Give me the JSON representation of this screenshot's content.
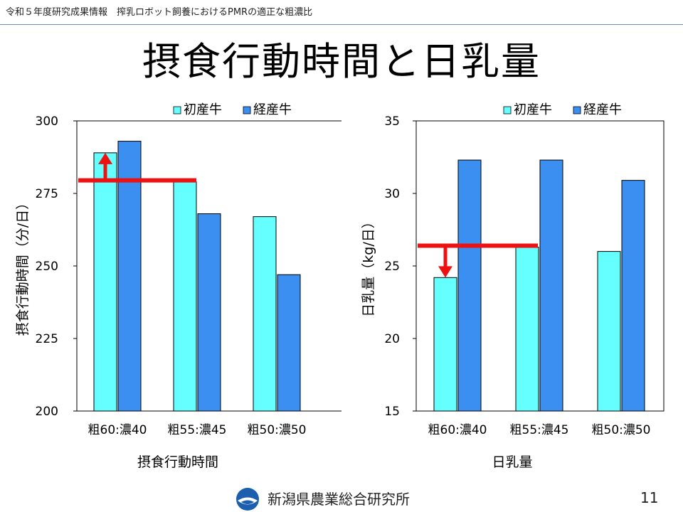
{
  "header": {
    "text": "令和５年度研究成果情報　搾乳ロボット飼養におけるPMRの適正な粗濃比"
  },
  "title": "摂食行動時間と日乳量",
  "footer": {
    "organization": "新潟県農業総合研究所",
    "page_number": "11"
  },
  "colors": {
    "primiparous": "#66ffff",
    "multiparous": "#3a8ff0",
    "reference": "#ee1111"
  },
  "chart_data": [
    {
      "type": "bar",
      "title": "摂食行動時間",
      "ylabel": "摂食行動時間（分/日）",
      "ylim": [
        200,
        300
      ],
      "yticks": [
        200,
        225,
        250,
        275,
        300
      ],
      "categories": [
        "粗60:濃40",
        "粗55:濃45",
        "粗50:濃50"
      ],
      "series": [
        {
          "name": "初産牛",
          "values": [
            289,
            279,
            267
          ]
        },
        {
          "name": "経産牛",
          "values": [
            293,
            268,
            247
          ]
        }
      ],
      "reference_line": 279.5,
      "legend_position": "top-right"
    },
    {
      "type": "bar",
      "title": "日乳量",
      "ylabel": "日乳量（kg/日）",
      "ylim": [
        15,
        35
      ],
      "yticks": [
        15,
        20,
        25,
        30,
        35
      ],
      "categories": [
        "粗60:濃40",
        "粗55:濃45",
        "粗50:濃50"
      ],
      "series": [
        {
          "name": "初産牛",
          "values": [
            24.2,
            26.3,
            26.0
          ]
        },
        {
          "name": "経産牛",
          "values": [
            32.3,
            32.3,
            30.9
          ]
        }
      ],
      "reference_line": 26.4,
      "legend_position": "top-right"
    }
  ]
}
